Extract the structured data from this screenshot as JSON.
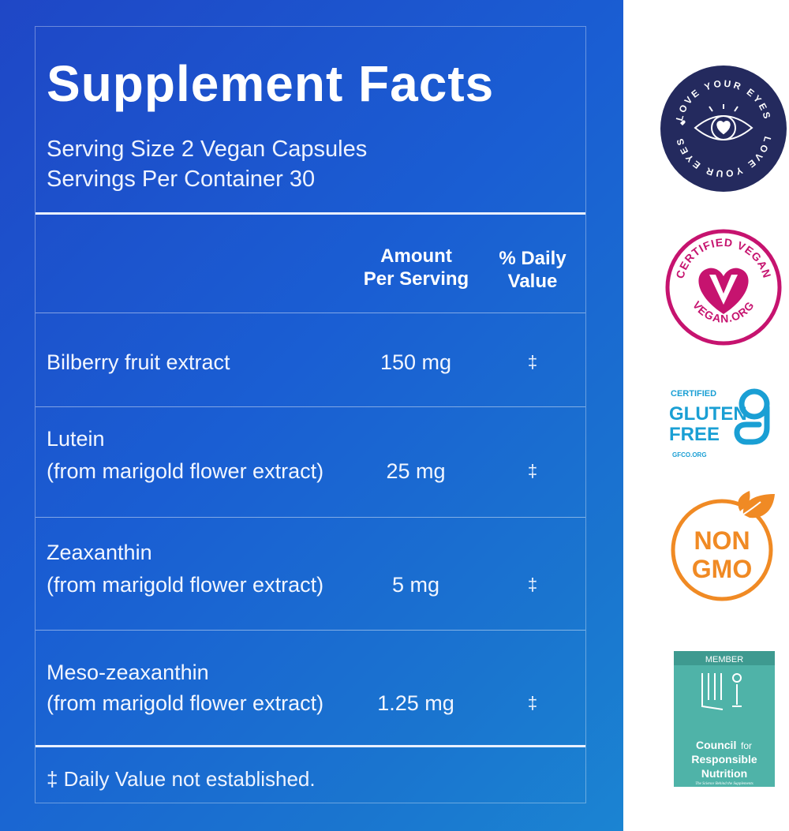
{
  "facts": {
    "title": "Supplement Facts",
    "serving_size": "Serving Size 2 Vegan Capsules",
    "servings_per_container": "Servings Per Container 30",
    "amount_header_line1": "Amount",
    "amount_header_line2": "Per Serving",
    "dv_header_line1": "% Daily",
    "dv_header_line2": "Value",
    "rows": [
      {
        "name": "Bilberry fruit extract",
        "source": "",
        "amount": "150 mg",
        "dv": "‡"
      },
      {
        "name": "Lutein",
        "source": "(from marigold flower extract)",
        "amount": "25 mg",
        "dv": "‡"
      },
      {
        "name": "Zeaxanthin",
        "source": "(from marigold flower extract)",
        "amount": "5 mg",
        "dv": "‡"
      },
      {
        "name": "Meso-zeaxanthin",
        "source": "(from marigold flower extract)",
        "amount": "1.25 mg",
        "dv": "‡"
      }
    ],
    "footnote": "‡ Daily Value not established."
  },
  "badges": {
    "love_eyes": {
      "text_top": "LOVE YOUR EYES",
      "text_bottom": "LOVE YOUR EYES",
      "color": "#242a5e",
      "icon": "eye-heart-icon"
    },
    "vegan": {
      "top": "CERTIFIED VEGAN",
      "bottom": "VEGAN.ORG",
      "color": "#c6136f",
      "icon": "heart-v-icon"
    },
    "gluten": {
      "certified": "CERTIFIED",
      "line1": "GLUTEN",
      "line2": "FREE",
      "site": "GFCO.ORG",
      "color": "#1a9fd4",
      "icon": "g-logo-icon"
    },
    "non_gmo": {
      "line1": "NON",
      "line2": "GMO",
      "color": "#f08a24",
      "icon": "leaf-icon"
    },
    "crn": {
      "member": "MEMBER",
      "line1": "Council",
      "line1b": "for",
      "line2": "Responsible",
      "line3": "Nutrition",
      "tagline": "The Science Behind the Supplements",
      "color": "#4fb3a8",
      "icon": "crn-logo-icon"
    }
  }
}
